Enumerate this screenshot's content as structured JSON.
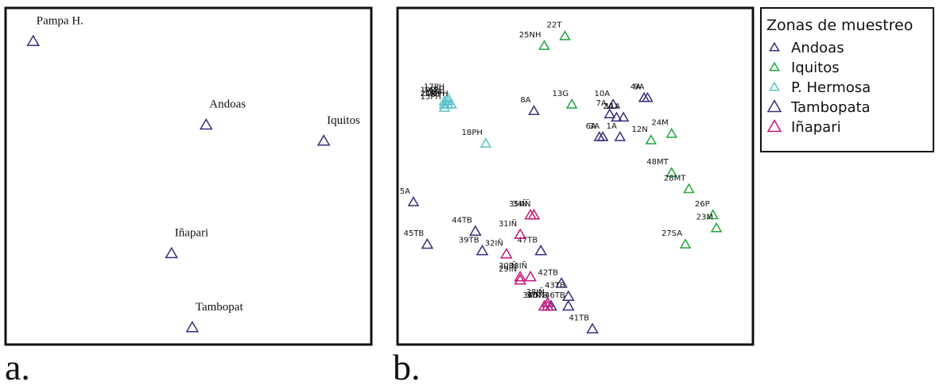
{
  "figure": {
    "panel_a_caption": "a.",
    "panel_b_caption": "b."
  },
  "colors": {
    "Andoas": "#3b2a7a",
    "Iquitos": "#1fa83a",
    "P. Hermosa": "#5cc0c8",
    "Tambopata": "#3b2a7a",
    "Iñapari": "#c4157a"
  },
  "legend": {
    "title": "Zonas de muestreo",
    "entries": [
      {
        "name": "Andoas",
        "color": "#3b2a7a",
        "marker": "small-triangle"
      },
      {
        "name": "Iquitos",
        "color": "#1fa83a",
        "marker": "small-triangle"
      },
      {
        "name": "P. Hermosa",
        "color": "#5cc0c8",
        "marker": "small-triangle"
      },
      {
        "name": "Tambopata",
        "color": "#3b2a7a",
        "marker": "large-triangle"
      },
      {
        "name": "Iñapari",
        "color": "#c4157a",
        "marker": "large-triangle"
      }
    ]
  },
  "chart_data": [
    {
      "type": "scatter",
      "panel": "a",
      "grid": false,
      "axes_shown": false,
      "xlim": [
        0,
        100
      ],
      "ylim": [
        0,
        100
      ],
      "points": [
        {
          "label": "Pampa H.",
          "x": 5,
          "y": 92,
          "color": "#3b2a7a"
        },
        {
          "label": "Andoas",
          "x": 55,
          "y": 66,
          "color": "#3b2a7a"
        },
        {
          "label": "Iquitos",
          "x": 89,
          "y": 61,
          "color": "#3b2a7a"
        },
        {
          "label": "Iñapari",
          "x": 45,
          "y": 26,
          "color": "#3b2a7a"
        },
        {
          "label": "Tambopat",
          "x": 51,
          "y": 3,
          "color": "#3b2a7a"
        }
      ]
    },
    {
      "type": "scatter",
      "panel": "b",
      "grid": false,
      "axes_shown": false,
      "xlim": [
        0,
        100
      ],
      "ylim": [
        0,
        100
      ],
      "legend_position": "outside-right-top",
      "series": [
        {
          "name": "Andoas",
          "points": [
            {
              "label": "10A",
              "x": 61,
              "y": 72
            },
            {
              "label": "4A",
              "x": 70,
              "y": 74
            },
            {
              "label": "9A",
              "x": 71,
              "y": 74
            },
            {
              "label": "2A",
              "x": 62,
              "y": 68
            },
            {
              "label": "7A",
              "x": 60,
              "y": 69
            },
            {
              "label": "11A",
              "x": 64,
              "y": 68
            },
            {
              "label": "8A",
              "x": 38,
              "y": 70
            },
            {
              "label": "6A",
              "x": 57,
              "y": 62
            },
            {
              "label": "3A",
              "x": 58,
              "y": 62
            },
            {
              "label": "1A",
              "x": 63,
              "y": 62
            },
            {
              "label": "5A",
              "x": 3,
              "y": 42
            }
          ]
        },
        {
          "name": "Iquitos",
          "points": [
            {
              "label": "22T",
              "x": 47,
              "y": 93
            },
            {
              "label": "25NH",
              "x": 41,
              "y": 90
            },
            {
              "label": "13G",
              "x": 49,
              "y": 72
            },
            {
              "label": "24M",
              "x": 78,
              "y": 63
            },
            {
              "label": "12N",
              "x": 72,
              "y": 61
            },
            {
              "label": "48MT",
              "x": 78,
              "y": 51
            },
            {
              "label": "28MT",
              "x": 83,
              "y": 46
            },
            {
              "label": "26P",
              "x": 90,
              "y": 38
            },
            {
              "label": "23M",
              "x": 91,
              "y": 34
            },
            {
              "label": "27SA",
              "x": 82,
              "y": 29
            }
          ]
        },
        {
          "name": "P. Hermosa",
          "points": [
            {
              "label": "19PH",
              "x": 12,
              "y": 73
            },
            {
              "label": "17PH",
              "x": 13,
              "y": 74
            },
            {
              "label": "16PH",
              "x": 13,
              "y": 73
            },
            {
              "label": "21PH",
              "x": 12,
              "y": 72
            },
            {
              "label": "14PH",
              "x": 13,
              "y": 72
            },
            {
              "label": "15PH",
              "x": 12,
              "y": 71
            },
            {
              "label": "20PH",
              "x": 14,
              "y": 72
            },
            {
              "label": "18PH",
              "x": 24,
              "y": 60
            }
          ]
        },
        {
          "name": "Tambopata",
          "points": [
            {
              "label": "44TB",
              "x": 21,
              "y": 33
            },
            {
              "label": "45TB",
              "x": 7,
              "y": 29
            },
            {
              "label": "39TB",
              "x": 23,
              "y": 27
            },
            {
              "label": "47TB",
              "x": 40,
              "y": 27
            },
            {
              "label": "42TB",
              "x": 46,
              "y": 17
            },
            {
              "label": "43TB",
              "x": 48,
              "y": 13
            },
            {
              "label": "46TB",
              "x": 48,
              "y": 10
            },
            {
              "label": "40TB",
              "x": 43,
              "y": 10
            },
            {
              "label": "41TB",
              "x": 55,
              "y": 3
            }
          ]
        },
        {
          "name": "Iñapari",
          "points": [
            {
              "label": "35IÑ",
              "x": 37,
              "y": 38
            },
            {
              "label": "34IÑ",
              "x": 38,
              "y": 38
            },
            {
              "label": "31IÑ",
              "x": 34,
              "y": 32
            },
            {
              "label": "32IÑ",
              "x": 30,
              "y": 26
            },
            {
              "label": "33IÑ",
              "x": 37,
              "y": 19
            },
            {
              "label": "30IÑ",
              "x": 34,
              "y": 19
            },
            {
              "label": "29IÑ",
              "x": 34,
              "y": 18
            },
            {
              "label": "36IÑ",
              "x": 41,
              "y": 10
            },
            {
              "label": "38IÑ",
              "x": 42,
              "y": 11
            },
            {
              "label": "37IÑ",
              "x": 42,
              "y": 10
            }
          ]
        }
      ]
    }
  ]
}
